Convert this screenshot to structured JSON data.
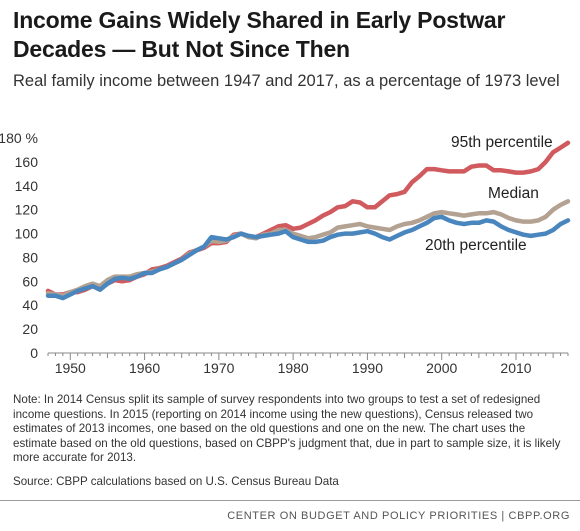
{
  "header": {
    "title": "Income Gains Widely Shared in Early Postwar Decades — But Not Since Then",
    "subtitle": "Real family income between 1947 and 2017, as a percentage of 1973 level"
  },
  "chart_data": {
    "type": "line",
    "title": "Income Gains Widely Shared in Early Postwar Decades — But Not Since Then",
    "subtitle": "Real family income between 1947 and 2017, as a percentage of 1973 level",
    "xlabel": "",
    "ylabel": "",
    "xlim": [
      1947,
      2017
    ],
    "ylim": [
      0,
      180
    ],
    "x_ticks": [
      1950,
      1960,
      1970,
      1980,
      1990,
      2000,
      2010
    ],
    "y_ticks": [
      0,
      20,
      40,
      60,
      80,
      100,
      120,
      140,
      160,
      180
    ],
    "y_tick_labels": [
      "0",
      "20",
      "40",
      "60",
      "80",
      "100",
      "120",
      "140",
      "160",
      "180 %"
    ],
    "grid": false,
    "legend": "direct labels on lines",
    "x": [
      1947,
      1948,
      1949,
      1950,
      1951,
      1952,
      1953,
      1954,
      1955,
      1956,
      1957,
      1958,
      1959,
      1960,
      1961,
      1962,
      1963,
      1964,
      1965,
      1966,
      1967,
      1968,
      1969,
      1970,
      1971,
      1972,
      1973,
      1974,
      1975,
      1976,
      1977,
      1978,
      1979,
      1980,
      1981,
      1982,
      1983,
      1984,
      1985,
      1986,
      1987,
      1988,
      1989,
      1990,
      1991,
      1992,
      1993,
      1994,
      1995,
      1996,
      1997,
      1998,
      1999,
      2000,
      2001,
      2002,
      2003,
      2004,
      2005,
      2006,
      2007,
      2008,
      2009,
      2010,
      2011,
      2012,
      2013,
      2014,
      2015,
      2016,
      2017
    ],
    "series": [
      {
        "name": "95th percentile",
        "color": "#d05a5e",
        "values": [
          52,
          49,
          49,
          51,
          51,
          53,
          56,
          55,
          58,
          61,
          60,
          61,
          64,
          66,
          70,
          71,
          73,
          76,
          79,
          84,
          86,
          88,
          92,
          92,
          93,
          99,
          100,
          97,
          97,
          100,
          103,
          106,
          107,
          104,
          105,
          108,
          111,
          115,
          118,
          122,
          123,
          127,
          126,
          122,
          122,
          127,
          132,
          133,
          135,
          143,
          148,
          154,
          154,
          153,
          152,
          152,
          152,
          156,
          157,
          157,
          153,
          153,
          152,
          151,
          151,
          152,
          154,
          160,
          168,
          172,
          176
        ],
        "label": "95th percentile"
      },
      {
        "name": "Median",
        "color": "#b3a292",
        "values": [
          50,
          49,
          48,
          51,
          53,
          56,
          58,
          56,
          61,
          64,
          64,
          64,
          66,
          67,
          68,
          70,
          72,
          75,
          78,
          83,
          86,
          89,
          94,
          93,
          94,
          98,
          100,
          97,
          96,
          99,
          100,
          103,
          103,
          100,
          98,
          96,
          97,
          99,
          101,
          105,
          106,
          107,
          108,
          106,
          105,
          104,
          103,
          106,
          108,
          109,
          111,
          114,
          117,
          118,
          117,
          116,
          115,
          116,
          117,
          117,
          118,
          116,
          113,
          111,
          110,
          110,
          111,
          114,
          120,
          124,
          127
        ],
        "label": "Median"
      },
      {
        "name": "20th percentile",
        "color": "#4a86be",
        "values": [
          48,
          48,
          46,
          49,
          52,
          54,
          56,
          53,
          58,
          62,
          63,
          62,
          64,
          67,
          67,
          70,
          72,
          75,
          78,
          82,
          86,
          89,
          97,
          96,
          95,
          97,
          100,
          98,
          97,
          98,
          99,
          100,
          102,
          97,
          95,
          93,
          93,
          94,
          97,
          99,
          100,
          100,
          101,
          102,
          100,
          97,
          95,
          98,
          101,
          103,
          106,
          109,
          113,
          114,
          111,
          109,
          108,
          109,
          109,
          111,
          110,
          106,
          103,
          101,
          99,
          98,
          99,
          100,
          103,
          108,
          111
        ],
        "label": "20th percentile"
      }
    ]
  },
  "labels": {
    "p95": "95th percentile",
    "median": "Median",
    "p20": "20th percentile"
  },
  "note": "Note: In 2014 Census split its sample of survey respondents into two groups to test a set of redesigned income questions. In 2015 (reporting on 2014 income using the new questions), Census released two estimates of 2013 incomes, one based on the old questions and one on the new. The chart uses the estimate based on the old questions, based on CBPP's judgment that, due in part to sample size, it is likely more accurate for 2013.",
  "source": "Source: CBPP calculations based on U.S. Census Bureau Data",
  "footer": "CENTER ON BUDGET AND POLICY PRIORITIES | CBPP.ORG"
}
